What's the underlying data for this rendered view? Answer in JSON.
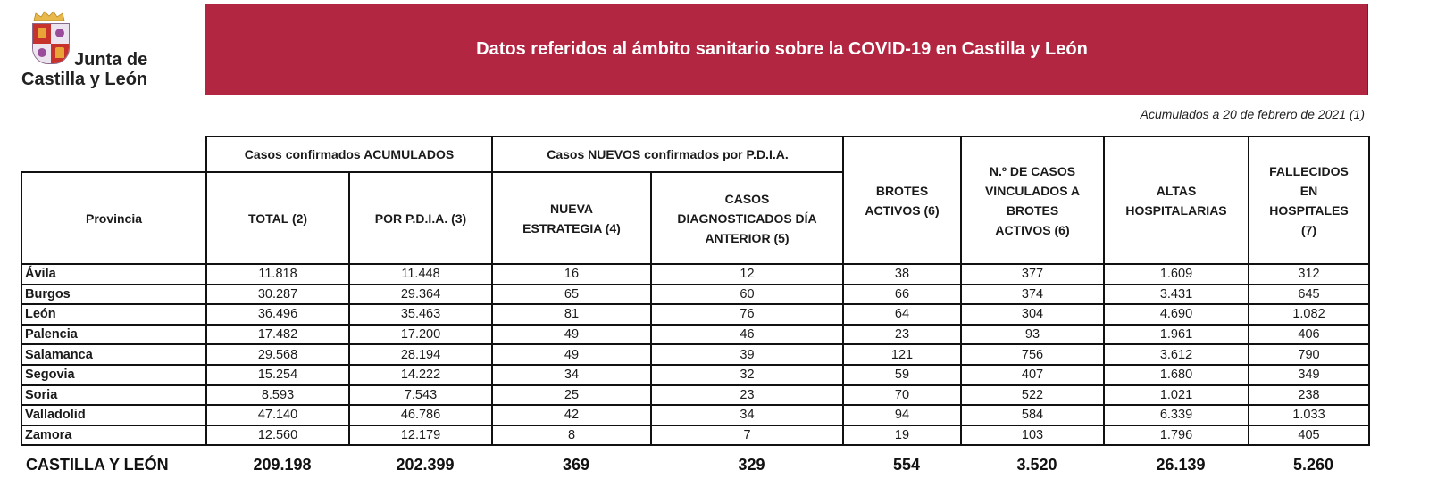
{
  "header": {
    "logo_line1": "Junta de",
    "logo_line2": "Castilla y León",
    "title": "Datos referidos al ámbito sanitario sobre la COVID-19 en Castilla y León",
    "subtitle": "Acumulados a 20 de febrero de 2021 (1)",
    "banner_color": "#b22642"
  },
  "table": {
    "groups": {
      "acumulados": "Casos confirmados ACUMULADOS",
      "nuevos": "Casos NUEVOS confirmados por P.D.I.A."
    },
    "columns": [
      "Provincia",
      "TOTAL (2)",
      "POR P.D.I.A. (3)",
      "NUEVA ESTRATEGIA (4)",
      "CASOS DIAGNOSTICADOS DÍA ANTERIOR (5)",
      "BROTES ACTIVOS (6)",
      "N.º DE CASOS VINCULADOS A BROTES ACTIVOS (6)",
      "ALTAS HOSPITALARIAS",
      "FALLECIDOS EN HOSPITALES (7)"
    ],
    "rows": [
      [
        "Ávila",
        "11.818",
        "11.448",
        "16",
        "12",
        "38",
        "377",
        "1.609",
        "312"
      ],
      [
        "Burgos",
        "30.287",
        "29.364",
        "65",
        "60",
        "66",
        "374",
        "3.431",
        "645"
      ],
      [
        "León",
        "36.496",
        "35.463",
        "81",
        "76",
        "64",
        "304",
        "4.690",
        "1.082"
      ],
      [
        "Palencia",
        "17.482",
        "17.200",
        "49",
        "46",
        "23",
        "93",
        "1.961",
        "406"
      ],
      [
        "Salamanca",
        "29.568",
        "28.194",
        "49",
        "39",
        "121",
        "756",
        "3.612",
        "790"
      ],
      [
        "Segovia",
        "15.254",
        "14.222",
        "34",
        "32",
        "59",
        "407",
        "1.680",
        "349"
      ],
      [
        "Soria",
        "8.593",
        "7.543",
        "25",
        "23",
        "70",
        "522",
        "1.021",
        "238"
      ],
      [
        "Valladolid",
        "47.140",
        "46.786",
        "42",
        "34",
        "94",
        "584",
        "6.339",
        "1.033"
      ],
      [
        "Zamora",
        "12.560",
        "12.179",
        "8",
        "7",
        "19",
        "103",
        "1.796",
        "405"
      ]
    ],
    "totals": [
      "CASTILLA Y LEÓN",
      "209.198",
      "202.399",
      "369",
      "329",
      "554",
      "3.520",
      "26.139",
      "5.260"
    ]
  }
}
